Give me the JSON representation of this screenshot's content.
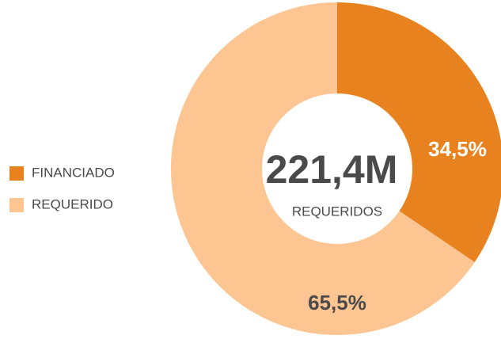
{
  "chart_data": {
    "type": "donut",
    "categories": [
      "FINANCIADO",
      "REQUERIDO"
    ],
    "values": [
      34.5,
      65.5
    ],
    "value_labels": [
      "34,5%",
      "65,5%"
    ],
    "colors": [
      "#e8821e",
      "#fdc592"
    ],
    "center_value": "221,4M",
    "center_label": "REQUERIDOS",
    "legend": "left"
  }
}
